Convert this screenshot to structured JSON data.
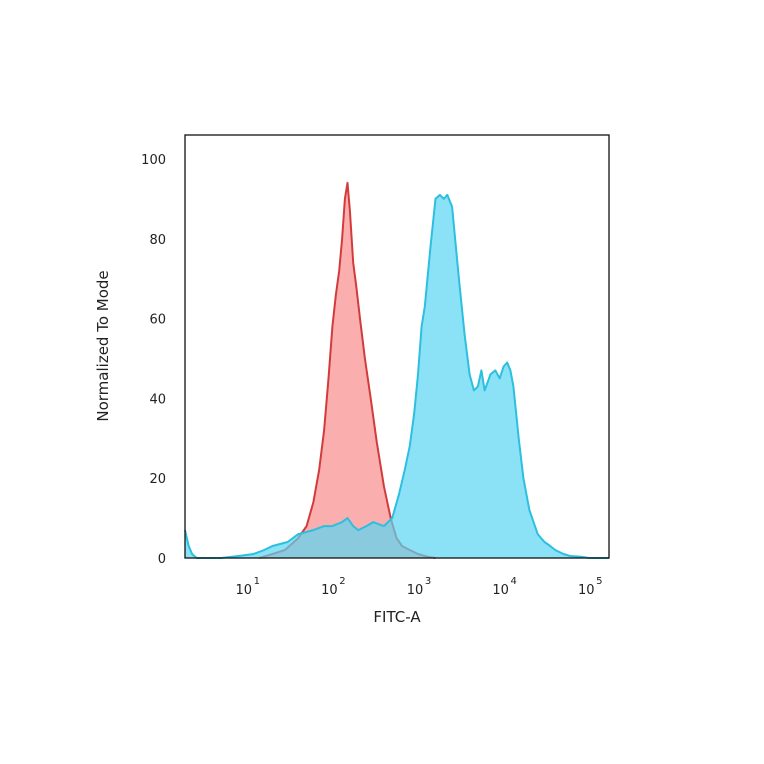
{
  "chart_data": {
    "type": "area",
    "xlabel": "FITC-A",
    "ylabel": "Normalized To Mode",
    "x_scale": "log",
    "xlim": [
      1.9,
      170000
    ],
    "ylim": [
      0,
      106
    ],
    "x_ticks": [
      {
        "value": 10,
        "base": "10",
        "exp": "1"
      },
      {
        "value": 100,
        "base": "10",
        "exp": "2"
      },
      {
        "value": 1000,
        "base": "10",
        "exp": "3"
      },
      {
        "value": 10000,
        "base": "10",
        "exp": "4"
      },
      {
        "value": 100000,
        "base": "10",
        "exp": "5"
      }
    ],
    "y_ticks": [
      0,
      20,
      40,
      60,
      80,
      100
    ],
    "grid": false,
    "series": [
      {
        "fill": "#f98c8c",
        "stroke": "#d23b3b",
        "x": [
          14,
          20,
          28,
          40,
          50,
          60,
          70,
          80,
          90,
          100,
          110,
          120,
          130,
          140,
          150,
          160,
          175,
          190,
          210,
          240,
          280,
          330,
          400,
          480,
          560,
          650,
          800,
          1000,
          1300,
          1600
        ],
        "y": [
          0,
          1,
          2,
          5,
          8,
          14,
          22,
          32,
          45,
          58,
          66,
          72,
          80,
          90,
          94,
          87,
          74,
          68,
          60,
          50,
          40,
          29,
          18,
          10,
          5,
          3,
          2,
          1,
          0.3,
          0
        ]
      },
      {
        "fill": "#5ad6f2",
        "stroke": "#2cbfdf",
        "x": [
          1.9,
          2.1,
          2.3,
          2.6,
          3,
          5,
          8,
          12,
          16,
          20,
          30,
          40,
          60,
          80,
          100,
          130,
          150,
          175,
          200,
          250,
          300,
          400,
          500,
          600,
          700,
          800,
          900,
          1000,
          1100,
          1200,
          1400,
          1600,
          1800,
          2000,
          2200,
          2500,
          3000,
          3500,
          4000,
          4500,
          5000,
          5500,
          6000,
          6500,
          7000,
          8000,
          9000,
          10000,
          11000,
          12000,
          13000,
          15000,
          17000,
          20000,
          25000,
          30000,
          35000,
          40000,
          50000,
          60000,
          80000,
          100000,
          170000
        ],
        "y": [
          7,
          3,
          1,
          0,
          0,
          0,
          0.5,
          1,
          2,
          3,
          4,
          6,
          7,
          8,
          8,
          9,
          10,
          8,
          7,
          8,
          9,
          8,
          10,
          16,
          22,
          28,
          36,
          46,
          58,
          63,
          78,
          90,
          91,
          90,
          91,
          88,
          70,
          56,
          46,
          42,
          43,
          47,
          42,
          44,
          46,
          47,
          45,
          48,
          49,
          47,
          43,
          30,
          20,
          12,
          6,
          4,
          3,
          2,
          1,
          0.5,
          0.3,
          0,
          0
        ]
      }
    ]
  }
}
